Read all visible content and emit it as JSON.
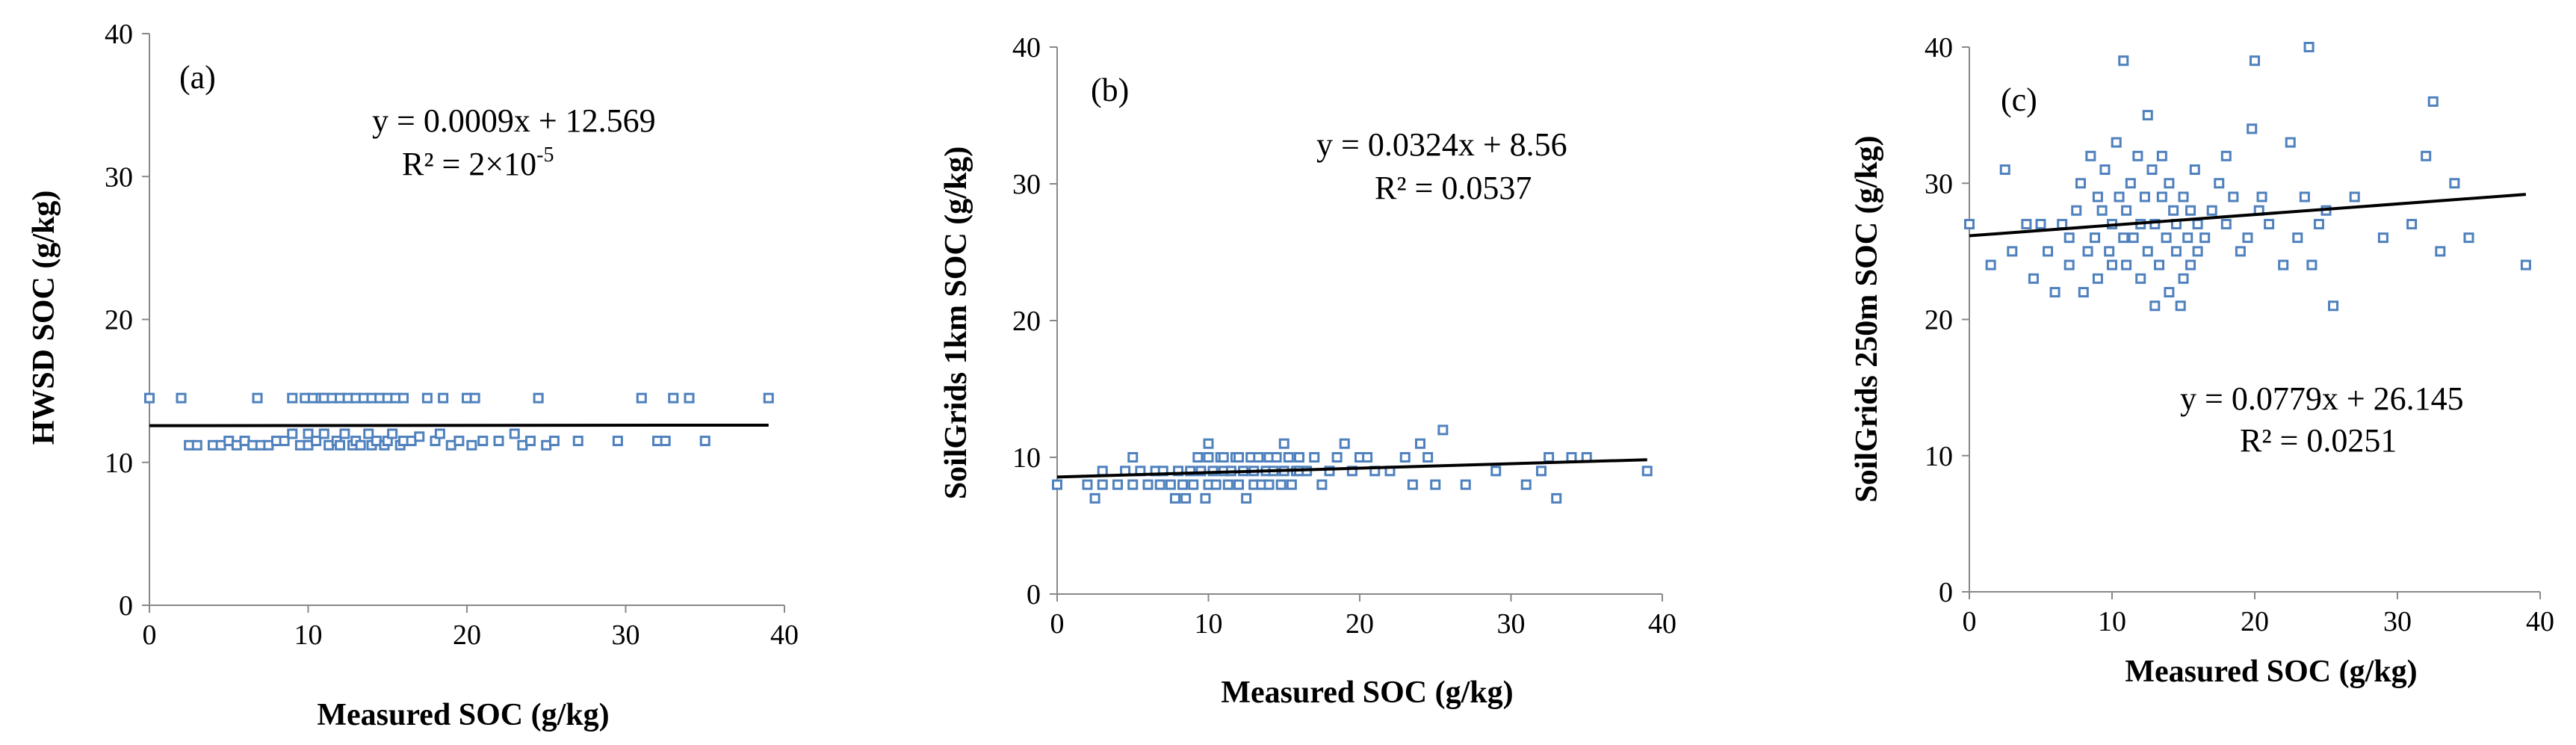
{
  "chart_data": [
    {
      "type": "scatter",
      "panel_label": "(a)",
      "xlabel": "Measured SOC (g/kg)",
      "ylabel": "HWSD SOC (g/kg)",
      "xlim": [
        0,
        40
      ],
      "ylim": [
        0,
        40
      ],
      "xticks": [
        0,
        10,
        20,
        30,
        40
      ],
      "yticks": [
        0,
        10,
        20,
        30,
        40
      ],
      "equation": "y = 0.0009x + 12.569",
      "r2_text": "R² = 2×10",
      "r2_sup": "-5",
      "trendline": {
        "slope": 0.0009,
        "intercept": 12.569
      },
      "x": [
        0,
        2,
        2.5,
        3,
        4,
        4.5,
        5,
        5.5,
        6,
        6.5,
        6.8,
        7,
        7.5,
        8,
        8.5,
        9,
        9,
        9.5,
        9.8,
        10,
        10,
        10.3,
        10.5,
        10.8,
        11,
        11,
        11.3,
        11.5,
        11.8,
        12,
        12,
        12.3,
        12.5,
        12.8,
        13,
        13,
        13.3,
        13.5,
        13.8,
        14,
        14,
        14.3,
        14.5,
        14.8,
        15,
        15,
        15.3,
        15.5,
        15.8,
        16,
        16,
        16.5,
        17,
        17.5,
        18,
        18.3,
        18.5,
        19,
        19.5,
        20,
        20.3,
        20.5,
        21,
        22,
        23,
        23.5,
        24,
        24.5,
        25,
        25.5,
        27,
        29.5,
        31,
        32,
        32.5,
        33,
        34,
        35,
        39
      ],
      "y": [
        14.5,
        14.5,
        11.2,
        11.2,
        11.2,
        11.2,
        11.5,
        11.2,
        11.5,
        11.2,
        14.5,
        11.2,
        11.2,
        11.5,
        11.5,
        12,
        14.5,
        11.2,
        14.5,
        11.2,
        12,
        14.5,
        11.5,
        14.5,
        12,
        14.5,
        11.2,
        14.5,
        11.5,
        11.2,
        14.5,
        12,
        14.5,
        11.2,
        11.5,
        14.5,
        11.2,
        14.5,
        12,
        11.2,
        14.5,
        11.5,
        14.5,
        11.2,
        11.5,
        14.5,
        12,
        14.5,
        11.2,
        11.5,
        14.5,
        11.5,
        11.8,
        14.5,
        11.5,
        12,
        14.5,
        11.2,
        11.5,
        14.5,
        11.2,
        14.5,
        11.5,
        11.5,
        12,
        11.2,
        11.5,
        14.5,
        11.2,
        11.5,
        11.5,
        11.5,
        14.5,
        11.5,
        11.5,
        14.5,
        14.5,
        11.5,
        14.5
      ]
    },
    {
      "type": "scatter",
      "panel_label": "(b)",
      "xlabel": "Measured SOC (g/kg)",
      "ylabel": "SoilGrids  1km SOC (g/kg)",
      "xlim": [
        0,
        40
      ],
      "ylim": [
        0,
        40
      ],
      "xticks": [
        0,
        10,
        20,
        30,
        40
      ],
      "yticks": [
        0,
        10,
        20,
        30,
        40
      ],
      "equation": "y = 0.0324x + 8.56",
      "r2_text": "R² = 0.0537",
      "r2_sup": "",
      "trendline": {
        "slope": 0.0324,
        "intercept": 8.56
      },
      "x": [
        0,
        2,
        2.5,
        3,
        3,
        4,
        4.5,
        5,
        5,
        5.5,
        6,
        6.5,
        6.8,
        7,
        7.5,
        7.8,
        8,
        8.3,
        8.5,
        8.8,
        9,
        9.3,
        9.5,
        9.8,
        10,
        10,
        10,
        10.3,
        10.5,
        10.8,
        11,
        11,
        11.3,
        11.5,
        11.8,
        12,
        12,
        12.3,
        12.5,
        12.8,
        13,
        13,
        13.3,
        13.5,
        13.8,
        14,
        14,
        14.3,
        14.5,
        14.8,
        15,
        15,
        15.3,
        15.5,
        15.8,
        16,
        16,
        16.5,
        17,
        17.5,
        18,
        18.5,
        19,
        19.5,
        20,
        20.5,
        21,
        22,
        23,
        23.5,
        24,
        24.5,
        25,
        25.5,
        27,
        29,
        31,
        32,
        32.5,
        33,
        34,
        35,
        39
      ],
      "y": [
        8,
        8,
        7,
        8,
        9,
        8,
        9,
        8,
        10,
        9,
        8,
        9,
        8,
        9,
        8,
        7,
        9,
        8,
        7,
        9,
        8,
        10,
        9,
        7,
        8,
        10,
        11,
        9,
        8,
        10,
        9,
        10,
        8,
        9,
        10,
        8,
        10,
        9,
        7,
        10,
        8,
        9,
        10,
        8,
        9,
        10,
        8,
        9,
        10,
        8,
        9,
        11,
        10,
        8,
        9,
        10,
        9,
        9,
        10,
        8,
        9,
        10,
        11,
        9,
        10,
        10,
        9,
        9,
        10,
        8,
        11,
        10,
        8,
        12,
        8,
        9,
        8,
        9,
        10,
        7,
        10,
        10,
        9
      ]
    },
    {
      "type": "scatter",
      "panel_label": "(c)",
      "xlabel": "Measured SOC (g/kg)",
      "ylabel": "SoilGrids  250m  SOC (g/kg)",
      "xlim": [
        0,
        40
      ],
      "ylim": [
        0,
        40
      ],
      "xticks": [
        0,
        10,
        20,
        30,
        40
      ],
      "yticks": [
        0,
        10,
        20,
        30,
        40
      ],
      "equation": "y = 0.0779x + 26.145",
      "r2_text": "R² = 0.0251",
      "r2_sup": "",
      "trendline": {
        "slope": 0.0779,
        "intercept": 26.145
      },
      "x": [
        0,
        1.5,
        2.5,
        3,
        4,
        4.5,
        5,
        5.5,
        6,
        6.5,
        7,
        7,
        7.5,
        7.8,
        8,
        8.3,
        8.5,
        8.8,
        9,
        9,
        9.3,
        9.5,
        9.8,
        10,
        10,
        10.3,
        10.5,
        10.8,
        10.8,
        11,
        11,
        11.3,
        11.5,
        11.8,
        12,
        12,
        12.3,
        12.5,
        12.5,
        12.8,
        13,
        13,
        13.3,
        13.5,
        13.5,
        13.8,
        14,
        14,
        14.3,
        14.5,
        14.5,
        14.8,
        15,
        15,
        15.3,
        15.5,
        15.5,
        15.8,
        16,
        16,
        16.5,
        17,
        17.5,
        18,
        18,
        18.5,
        19,
        19.5,
        19.8,
        20,
        20.3,
        20.5,
        21,
        22,
        22.5,
        23,
        23.5,
        23.8,
        24,
        24.5,
        25,
        25.5,
        27,
        29,
        31,
        32,
        32.5,
        33,
        34,
        35,
        39
      ],
      "y": [
        27,
        24,
        31,
        25,
        27,
        23,
        27,
        25,
        22,
        27,
        26,
        24,
        28,
        30,
        22,
        25,
        32,
        26,
        23,
        29,
        28,
        31,
        25,
        24,
        27,
        33,
        29,
        26,
        39,
        28,
        24,
        30,
        26,
        32,
        27,
        23,
        29,
        25,
        35,
        31,
        21,
        27,
        24,
        29,
        32,
        26,
        22,
        30,
        28,
        25,
        27,
        21,
        23,
        29,
        26,
        28,
        24,
        31,
        27,
        25,
        26,
        28,
        30,
        27,
        32,
        29,
        25,
        26,
        34,
        39,
        28,
        29,
        27,
        24,
        33,
        26,
        29,
        40,
        24,
        27,
        28,
        21,
        29,
        26,
        27,
        32,
        36,
        25,
        30,
        26,
        24
      ]
    }
  ]
}
